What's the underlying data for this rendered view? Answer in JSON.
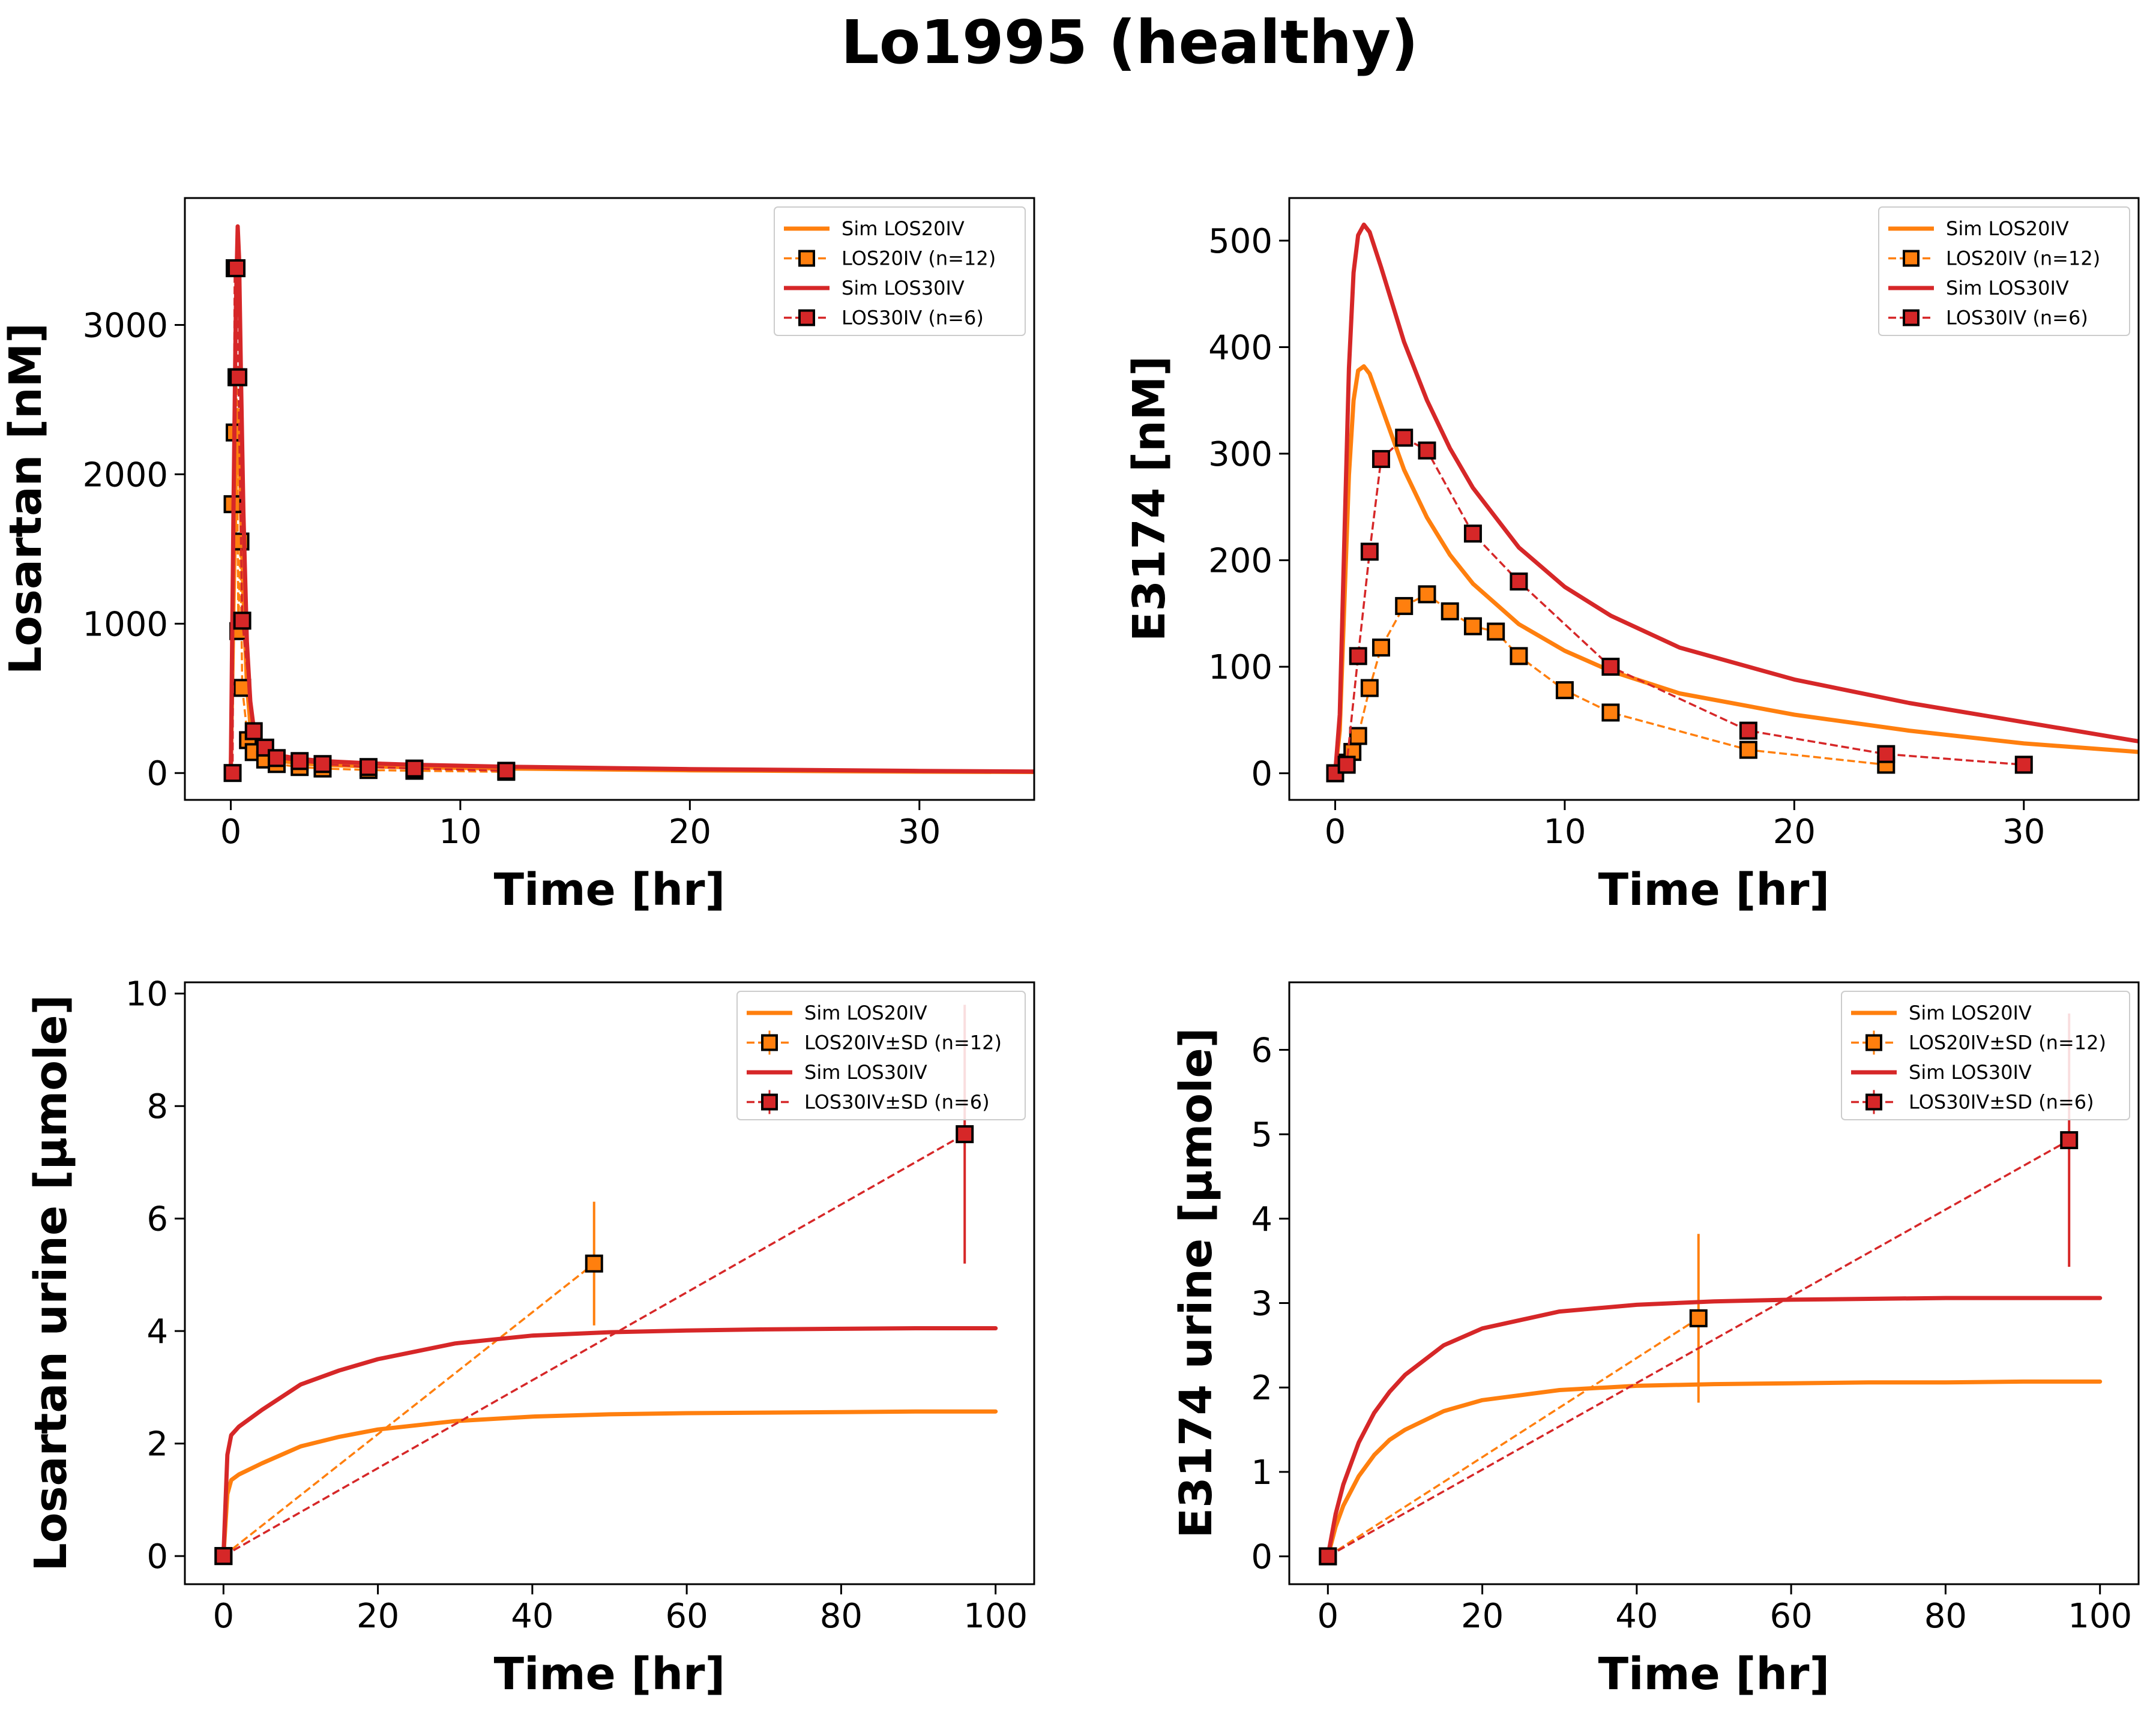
{
  "figure_title": "Lo1995 (healthy)",
  "colors": {
    "orange": "#ff7f0e",
    "red": "#d62728"
  },
  "chart_data": [
    {
      "type": "line",
      "xlabel": "Time [hr]",
      "ylabel": "Losartan [nM]",
      "xlim": [
        -2,
        35
      ],
      "ylim": [
        -180,
        3850
      ],
      "xticks": [
        0,
        10,
        20,
        30
      ],
      "yticks": [
        0,
        1000,
        2000,
        3000
      ],
      "xtick_labels": [
        "0",
        "10",
        "20",
        "30"
      ],
      "ytick_labels": [
        "0",
        "1000",
        "2000",
        "3000"
      ],
      "legend_position": "upper right",
      "series": [
        {
          "name": "Sim LOS20IV",
          "kind": "sim",
          "color": "#ff7f0e",
          "x": [
            0,
            0.12,
            0.22,
            0.3,
            0.36,
            0.45,
            0.55,
            0.7,
            0.85,
            1.0,
            1.5,
            2,
            3,
            4,
            6,
            8,
            12,
            20,
            30,
            35
          ],
          "y": [
            0,
            1150,
            2000,
            2430,
            2300,
            1750,
            1200,
            600,
            330,
            200,
            110,
            85,
            65,
            55,
            45,
            38,
            30,
            18,
            9,
            7
          ]
        },
        {
          "name": "LOS20IV (n=12)",
          "kind": "data",
          "color": "#ff7f0e",
          "x": [
            0.08,
            0.17,
            0.25,
            0.33,
            0.42,
            0.5,
            0.75,
            1,
            1.5,
            2,
            3,
            4,
            6,
            8,
            12
          ],
          "y": [
            1800,
            2280,
            2650,
            950,
            1550,
            570,
            220,
            140,
            90,
            60,
            40,
            30,
            20,
            15,
            8
          ]
        },
        {
          "name": "Sim LOS30IV",
          "kind": "sim",
          "color": "#d62728",
          "x": [
            0,
            0.12,
            0.22,
            0.3,
            0.36,
            0.45,
            0.55,
            0.7,
            0.85,
            1.0,
            1.5,
            2,
            3,
            4,
            6,
            8,
            12,
            20,
            30,
            35
          ],
          "y": [
            0,
            1800,
            3100,
            3660,
            3450,
            2600,
            1750,
            880,
            480,
            300,
            160,
            120,
            95,
            80,
            65,
            55,
            42,
            26,
            14,
            10
          ]
        },
        {
          "name": "LOS30IV (n=6)",
          "kind": "data",
          "color": "#d62728",
          "x": [
            0.08,
            0.17,
            0.25,
            0.33,
            0.5,
            1,
            1.5,
            2,
            3,
            4,
            6,
            8,
            12
          ],
          "y": [
            0,
            3380,
            3380,
            2650,
            1020,
            280,
            170,
            100,
            80,
            60,
            40,
            30,
            15
          ]
        }
      ]
    },
    {
      "type": "line",
      "xlabel": "Time [hr]",
      "ylabel": "E3174 [nM]",
      "xlim": [
        -2,
        35
      ],
      "ylim": [
        -25,
        540
      ],
      "xticks": [
        0,
        10,
        20,
        30
      ],
      "yticks": [
        0,
        100,
        200,
        300,
        400,
        500
      ],
      "xtick_labels": [
        "0",
        "10",
        "20",
        "30"
      ],
      "ytick_labels": [
        "0",
        "100",
        "200",
        "300",
        "400",
        "500"
      ],
      "legend_position": "upper right",
      "series": [
        {
          "name": "Sim LOS20IV",
          "kind": "sim",
          "color": "#ff7f0e",
          "x": [
            0,
            0.2,
            0.4,
            0.6,
            0.8,
            1.0,
            1.25,
            1.5,
            2,
            3,
            4,
            5,
            6,
            8,
            10,
            12,
            15,
            20,
            25,
            30,
            35
          ],
          "y": [
            0,
            40,
            160,
            280,
            350,
            378,
            382,
            375,
            345,
            285,
            240,
            205,
            178,
            140,
            115,
            96,
            75,
            55,
            40,
            28,
            20
          ]
        },
        {
          "name": "LOS20IV (n=12)",
          "kind": "data",
          "color": "#ff7f0e",
          "x": [
            0,
            0.5,
            0.75,
            1,
            1.5,
            2,
            3,
            4,
            5,
            6,
            7,
            8,
            10,
            12,
            18,
            24
          ],
          "y": [
            0,
            10,
            20,
            35,
            80,
            118,
            157,
            168,
            152,
            138,
            133,
            110,
            78,
            57,
            22,
            8
          ]
        },
        {
          "name": "Sim LOS30IV",
          "kind": "sim",
          "color": "#d62728",
          "x": [
            0,
            0.2,
            0.4,
            0.6,
            0.8,
            1.0,
            1.25,
            1.5,
            2,
            3,
            4,
            5,
            6,
            8,
            10,
            12,
            15,
            20,
            25,
            30,
            35
          ],
          "y": [
            0,
            55,
            220,
            380,
            470,
            505,
            515,
            508,
            475,
            405,
            350,
            305,
            268,
            212,
            175,
            148,
            118,
            88,
            66,
            48,
            30
          ]
        },
        {
          "name": "LOS30IV (n=6)",
          "kind": "data",
          "color": "#d62728",
          "x": [
            0,
            0.5,
            1,
            1.5,
            2,
            3,
            4,
            6,
            8,
            12,
            18,
            24,
            30
          ],
          "y": [
            0,
            8,
            110,
            208,
            295,
            315,
            303,
            225,
            180,
            100,
            40,
            18,
            8
          ]
        }
      ]
    },
    {
      "type": "line",
      "xlabel": "Time [hr]",
      "ylabel": "Losartan urine [µmole]",
      "xlim": [
        -5,
        105
      ],
      "ylim": [
        -0.5,
        10.2
      ],
      "xticks": [
        0,
        20,
        40,
        60,
        80,
        100
      ],
      "yticks": [
        0,
        2,
        4,
        6,
        8,
        10
      ],
      "xtick_labels": [
        "0",
        "20",
        "40",
        "60",
        "80",
        "100"
      ],
      "ytick_labels": [
        "0",
        "2",
        "4",
        "6",
        "8",
        "10"
      ],
      "legend_position": "upper right",
      "series": [
        {
          "name": "Sim LOS20IV",
          "kind": "sim",
          "color": "#ff7f0e",
          "x": [
            0,
            0.5,
            1,
            2,
            5,
            10,
            15,
            20,
            30,
            40,
            50,
            60,
            70,
            80,
            90,
            100
          ],
          "y": [
            0,
            1.1,
            1.35,
            1.45,
            1.65,
            1.95,
            2.12,
            2.25,
            2.4,
            2.48,
            2.52,
            2.54,
            2.55,
            2.56,
            2.57,
            2.57
          ]
        },
        {
          "name": "LOS20IV±SD (n=12)",
          "kind": "data",
          "color": "#ff7f0e",
          "x": [
            0,
            48
          ],
          "y": [
            0,
            5.2
          ],
          "yerr": [
            0,
            1.1
          ]
        },
        {
          "name": "Sim LOS30IV",
          "kind": "sim",
          "color": "#d62728",
          "x": [
            0,
            0.5,
            1,
            2,
            5,
            10,
            15,
            20,
            30,
            40,
            50,
            60,
            70,
            80,
            90,
            100
          ],
          "y": [
            0,
            1.8,
            2.15,
            2.3,
            2.6,
            3.05,
            3.3,
            3.5,
            3.78,
            3.92,
            3.98,
            4.01,
            4.03,
            4.04,
            4.05,
            4.05
          ]
        },
        {
          "name": "LOS30IV±SD (n=6)",
          "kind": "data",
          "color": "#d62728",
          "x": [
            0,
            96
          ],
          "y": [
            0,
            7.5
          ],
          "yerr": [
            0,
            2.3
          ]
        }
      ]
    },
    {
      "type": "line",
      "xlabel": "Time [hr]",
      "ylabel": "E3174 urine [µmole]",
      "xlim": [
        -5,
        105
      ],
      "ylim": [
        -0.33,
        6.8
      ],
      "xticks": [
        0,
        20,
        40,
        60,
        80,
        100
      ],
      "yticks": [
        0,
        1,
        2,
        3,
        4,
        5,
        6
      ],
      "xtick_labels": [
        "0",
        "20",
        "40",
        "60",
        "80",
        "100"
      ],
      "ytick_labels": [
        "0",
        "1",
        "2",
        "3",
        "4",
        "5",
        "6"
      ],
      "legend_position": "upper right",
      "series": [
        {
          "name": "Sim LOS20IV",
          "kind": "sim",
          "color": "#ff7f0e",
          "x": [
            0,
            1,
            2,
            4,
            6,
            8,
            10,
            15,
            20,
            30,
            40,
            50,
            60,
            70,
            80,
            90,
            100
          ],
          "y": [
            0,
            0.35,
            0.6,
            0.95,
            1.2,
            1.38,
            1.5,
            1.72,
            1.85,
            1.97,
            2.02,
            2.04,
            2.05,
            2.06,
            2.06,
            2.07,
            2.07
          ]
        },
        {
          "name": "LOS20IV±SD (n=12)",
          "kind": "data",
          "color": "#ff7f0e",
          "x": [
            0,
            48
          ],
          "y": [
            0,
            2.82
          ],
          "yerr": [
            0,
            1.0
          ]
        },
        {
          "name": "Sim LOS30IV",
          "kind": "sim",
          "color": "#d62728",
          "x": [
            0,
            1,
            2,
            4,
            6,
            8,
            10,
            15,
            20,
            30,
            40,
            50,
            60,
            70,
            80,
            90,
            100
          ],
          "y": [
            0,
            0.5,
            0.85,
            1.35,
            1.7,
            1.95,
            2.15,
            2.5,
            2.7,
            2.9,
            2.98,
            3.02,
            3.04,
            3.05,
            3.06,
            3.06,
            3.06
          ]
        },
        {
          "name": "LOS30IV±SD (n=6)",
          "kind": "data",
          "color": "#d62728",
          "x": [
            0,
            96
          ],
          "y": [
            0,
            4.93
          ],
          "yerr": [
            0,
            1.5
          ]
        }
      ]
    }
  ]
}
